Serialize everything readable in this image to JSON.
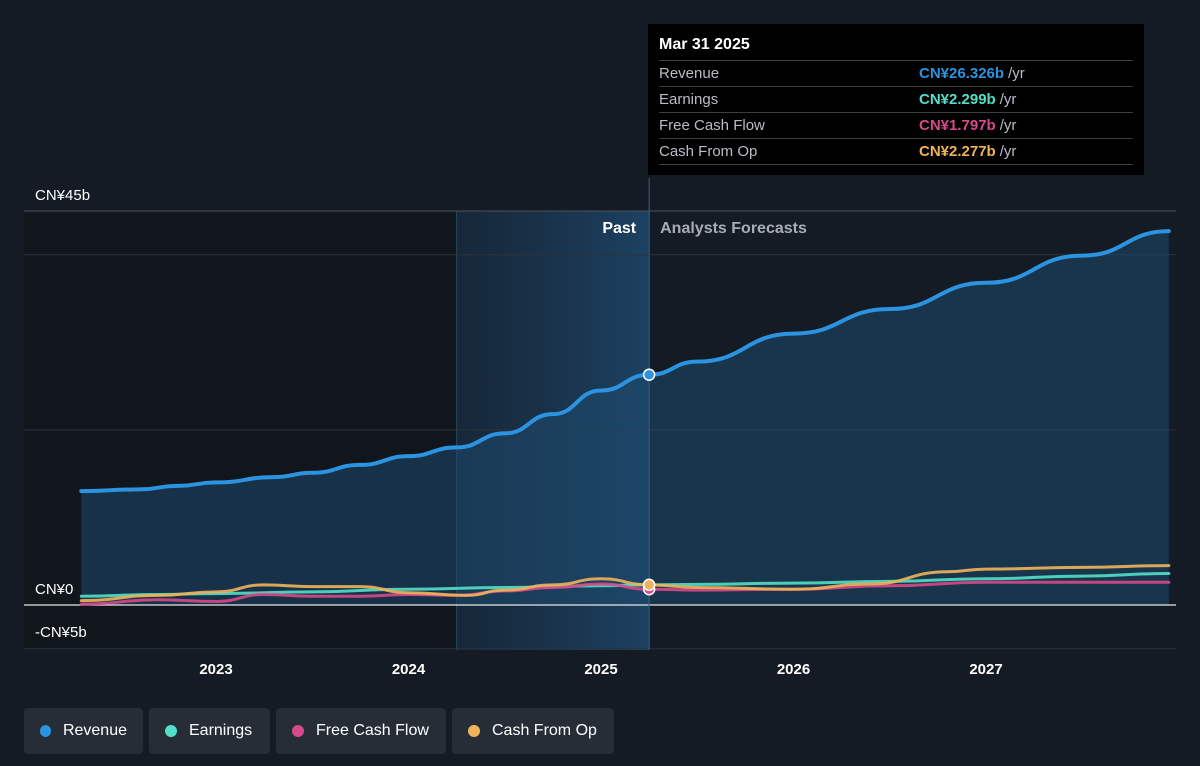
{
  "chart_data": {
    "type": "line",
    "y_axis": {
      "ticks": [
        {
          "value": 45,
          "label": "CN¥45b"
        },
        {
          "value": 0,
          "label": "CN¥0"
        },
        {
          "value": -5,
          "label": "-CN¥5b"
        }
      ],
      "ylim": [
        -5,
        45
      ]
    },
    "x_axis": {
      "ticks": [
        {
          "value": 2023,
          "label": "2023"
        },
        {
          "value": 2024,
          "label": "2024"
        },
        {
          "value": 2025,
          "label": "2025"
        },
        {
          "value": 2026,
          "label": "2026"
        },
        {
          "value": 2027,
          "label": "2027"
        }
      ],
      "xlim": [
        2021.0,
        2028.0
      ]
    },
    "past_label": "Past",
    "forecast_label": "Analysts Forecasts",
    "past_start": 2024.25,
    "divider": 2025.25,
    "series": [
      {
        "name": "Revenue",
        "color": "#2b93e0",
        "x": [
          2022.3,
          2022.6,
          2022.8,
          2023.0,
          2023.3,
          2023.5,
          2023.75,
          2024.0,
          2024.25,
          2024.5,
          2024.75,
          2025.0,
          2025.25,
          2025.5,
          2026.0,
          2026.5,
          2027.0,
          2027.5,
          2027.95
        ],
        "y": [
          13.0,
          13.2,
          13.6,
          14.0,
          14.6,
          15.1,
          16.0,
          17.0,
          18.0,
          19.6,
          21.8,
          24.5,
          26.3,
          27.8,
          31.0,
          33.8,
          36.8,
          39.9,
          42.7
        ]
      },
      {
        "name": "Earnings",
        "color": "#52dfc8",
        "x": [
          2022.3,
          2022.7,
          2023.0,
          2023.5,
          2024.0,
          2024.5,
          2025.0,
          2025.25,
          2025.5,
          2026.0,
          2026.5,
          2027.0,
          2027.5,
          2027.95
        ],
        "y": [
          1.0,
          1.2,
          1.3,
          1.5,
          1.8,
          2.0,
          2.2,
          2.3,
          2.35,
          2.5,
          2.7,
          3.0,
          3.3,
          3.6
        ]
      },
      {
        "name": "Free Cash Flow",
        "color": "#d6498a",
        "x": [
          2022.3,
          2022.7,
          2023.0,
          2023.25,
          2023.5,
          2023.75,
          2024.0,
          2024.25,
          2024.5,
          2024.75,
          2025.0,
          2025.25,
          2025.5,
          2026.0,
          2026.5,
          2027.0,
          2027.5,
          2027.95
        ],
        "y": [
          0.1,
          0.6,
          0.4,
          1.2,
          1.0,
          1.0,
          1.2,
          1.1,
          1.6,
          2.0,
          2.4,
          1.8,
          1.7,
          1.8,
          2.2,
          2.6,
          2.6,
          2.6
        ]
      },
      {
        "name": "Cash From Op",
        "color": "#f0b25a",
        "x": [
          2022.3,
          2022.7,
          2023.0,
          2023.25,
          2023.5,
          2023.75,
          2024.0,
          2024.3,
          2024.5,
          2024.75,
          2025.0,
          2025.25,
          2025.5,
          2026.0,
          2026.4,
          2026.8,
          2027.0,
          2027.5,
          2027.95
        ],
        "y": [
          0.5,
          1.1,
          1.5,
          2.3,
          2.1,
          2.1,
          1.4,
          1.1,
          1.7,
          2.3,
          3.0,
          2.3,
          2.0,
          1.8,
          2.4,
          3.8,
          4.1,
          4.3,
          4.5
        ]
      }
    ],
    "tooltip": {
      "date": "Mar 31 2025",
      "rows": [
        {
          "label": "Revenue",
          "value": "CN¥26.326b",
          "unit": "/yr",
          "color": "#2b93e0"
        },
        {
          "label": "Earnings",
          "value": "CN¥2.299b",
          "unit": "/yr",
          "color": "#52dfc8"
        },
        {
          "label": "Free Cash Flow",
          "value": "CN¥1.797b",
          "unit": "/yr",
          "color": "#d6498a"
        },
        {
          "label": "Cash From Op",
          "value": "CN¥2.277b",
          "unit": "/yr",
          "color": "#f0b25a"
        }
      ]
    }
  },
  "legend": [
    {
      "label": "Revenue",
      "color": "#2b93e0"
    },
    {
      "label": "Earnings",
      "color": "#52dfc8"
    },
    {
      "label": "Free Cash Flow",
      "color": "#d6498a"
    },
    {
      "label": "Cash From Op",
      "color": "#f0b25a"
    }
  ]
}
